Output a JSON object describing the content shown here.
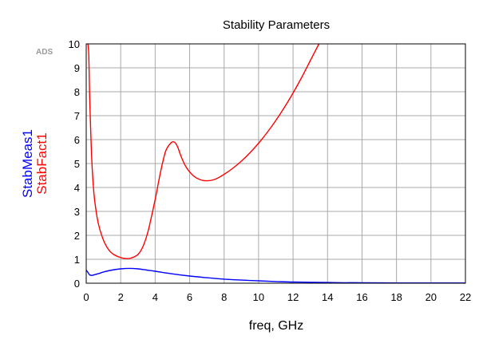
{
  "chart_data": {
    "type": "line",
    "title": "Stability Parameters",
    "xlabel": "freq, GHz",
    "watermark": "ADS",
    "xlim": [
      0,
      22
    ],
    "ylim": [
      0,
      10
    ],
    "xticks": [
      0,
      2,
      4,
      6,
      8,
      10,
      12,
      14,
      16,
      18,
      20,
      22
    ],
    "yticks": [
      0,
      1,
      2,
      3,
      4,
      5,
      6,
      7,
      8,
      9,
      10
    ],
    "grid": true,
    "series": [
      {
        "name": "StabMeas1",
        "color": "#0000ff",
        "x": [
          0,
          0.1,
          0.2,
          0.35,
          0.5,
          0.8,
          1.0,
          1.5,
          2.0,
          2.5,
          3.0,
          3.5,
          4.0,
          5.0,
          6.0,
          7.0,
          8.0,
          9.0,
          10.0,
          11.0,
          12.0,
          13.0,
          14.0,
          15.0,
          16.0,
          18.0,
          20.0,
          22.0
        ],
        "y": [
          0.55,
          0.45,
          0.35,
          0.33,
          0.36,
          0.42,
          0.47,
          0.55,
          0.6,
          0.62,
          0.6,
          0.55,
          0.5,
          0.39,
          0.3,
          0.23,
          0.17,
          0.13,
          0.1,
          0.07,
          0.05,
          0.04,
          0.03,
          0.02,
          0.02,
          0.01,
          0.01,
          0.01
        ]
      },
      {
        "name": "StabFact1",
        "color": "#ff0000",
        "x": [
          0.1,
          0.15,
          0.2,
          0.3,
          0.4,
          0.5,
          0.7,
          1.0,
          1.3,
          1.6,
          2.0,
          2.3,
          2.6,
          3.0,
          3.3,
          3.6,
          4.0,
          4.3,
          4.6,
          4.9,
          5.1,
          5.3,
          5.5,
          5.8,
          6.2,
          6.6,
          7.0,
          7.5,
          8.0,
          8.5,
          9.0,
          9.5,
          10.0,
          10.5,
          11.0,
          11.5,
          12.0,
          12.5,
          13.0,
          13.5
        ],
        "y": [
          10,
          9.5,
          7.8,
          5.5,
          4.2,
          3.4,
          2.5,
          1.8,
          1.4,
          1.2,
          1.07,
          1.03,
          1.05,
          1.2,
          1.55,
          2.2,
          3.5,
          4.6,
          5.5,
          5.85,
          5.9,
          5.7,
          5.3,
          4.85,
          4.5,
          4.33,
          4.28,
          4.35,
          4.55,
          4.8,
          5.1,
          5.45,
          5.85,
          6.3,
          6.8,
          7.35,
          7.95,
          8.6,
          9.3,
          10
        ]
      }
    ]
  }
}
